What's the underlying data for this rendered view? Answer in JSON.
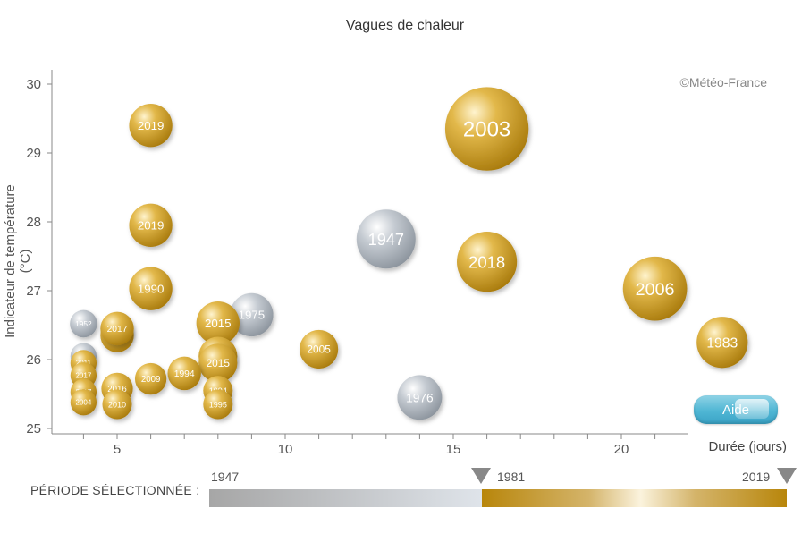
{
  "header": {
    "title": "Vagues de chaleur",
    "credit": "©Météo-France"
  },
  "colors": {
    "recent": "#c89a1e",
    "old": "#9aa3ad",
    "axis": "#888888"
  },
  "help_button": {
    "label": "Aide"
  },
  "period": {
    "label": "PÉRIODE SÉLECTIONNÉE :",
    "start": "1947",
    "split": "1981",
    "end": "2019"
  },
  "chart_data": {
    "type": "scatter",
    "title": "Vagues de chaleur",
    "xlabel": "Durée (jours)",
    "ylabel": "Indicateur de température (°C)",
    "xlim": [
      2.9,
      21.8
    ],
    "ylim": [
      24.9,
      30.2
    ],
    "xticks": [
      5,
      10,
      15,
      20
    ],
    "yticks": [
      25,
      26,
      27,
      28,
      29,
      30
    ],
    "grid": false,
    "points": [
      {
        "year": "2003",
        "x": 16,
        "y": 29.35,
        "size": 5.6,
        "period": "recent"
      },
      {
        "year": "2019",
        "x": 6,
        "y": 29.4,
        "size": 1.5,
        "period": "recent"
      },
      {
        "year": "2019",
        "x": 6,
        "y": 27.95,
        "size": 1.5,
        "period": "recent"
      },
      {
        "year": "1947",
        "x": 13,
        "y": 27.75,
        "size": 2.8,
        "period": "old"
      },
      {
        "year": "2018",
        "x": 16,
        "y": 27.42,
        "size": 2.9,
        "period": "recent"
      },
      {
        "year": "2006",
        "x": 21,
        "y": 27.03,
        "size": 3.3,
        "period": "recent"
      },
      {
        "year": "1990",
        "x": 6,
        "y": 27.03,
        "size": 1.5,
        "period": "recent"
      },
      {
        "year": "1975",
        "x": 9,
        "y": 26.65,
        "size": 1.5,
        "period": "old"
      },
      {
        "year": "2015",
        "x": 8,
        "y": 26.53,
        "size": 1.5,
        "period": "recent"
      },
      {
        "year": "1952",
        "x": 4,
        "y": 26.52,
        "size": 0.6,
        "period": "old"
      },
      {
        "year": "2017",
        "x": 5,
        "y": 26.35,
        "size": 0.9,
        "period": "recent"
      },
      {
        "year": "2017",
        "x": 5,
        "y": 26.45,
        "size": 0.9,
        "period": "recent"
      },
      {
        "year": "1983",
        "x": 23,
        "y": 26.25,
        "size": 2.1,
        "period": "recent"
      },
      {
        "year": "2005",
        "x": 11,
        "y": 26.15,
        "size": 1.2,
        "period": "recent"
      },
      {
        "year": "",
        "x": 4,
        "y": 26.05,
        "size": 0.55,
        "period": "old"
      },
      {
        "year": "2015",
        "x": 8,
        "y": 26.05,
        "size": 1.2,
        "period": "recent"
      },
      {
        "year": "2015",
        "x": 8,
        "y": 25.95,
        "size": 1.2,
        "period": "recent"
      },
      {
        "year": "2011",
        "x": 4,
        "y": 25.95,
        "size": 0.55,
        "period": "recent"
      },
      {
        "year": "1994",
        "x": 7,
        "y": 25.8,
        "size": 0.9,
        "period": "recent"
      },
      {
        "year": "2017",
        "x": 4,
        "y": 25.77,
        "size": 0.55,
        "period": "recent"
      },
      {
        "year": "2009",
        "x": 6,
        "y": 25.72,
        "size": 0.8,
        "period": "recent"
      },
      {
        "year": "2016",
        "x": 5,
        "y": 25.58,
        "size": 0.8,
        "period": "recent"
      },
      {
        "year": "2017",
        "x": 4,
        "y": 25.53,
        "size": 0.55,
        "period": "recent"
      },
      {
        "year": "1994",
        "x": 8,
        "y": 25.55,
        "size": 0.7,
        "period": "recent"
      },
      {
        "year": "1976",
        "x": 14,
        "y": 25.45,
        "size": 1.6,
        "period": "old"
      },
      {
        "year": "2004",
        "x": 4,
        "y": 25.38,
        "size": 0.55,
        "period": "recent"
      },
      {
        "year": "2010",
        "x": 5,
        "y": 25.35,
        "size": 0.7,
        "period": "recent"
      },
      {
        "year": "1995",
        "x": 8,
        "y": 25.35,
        "size": 0.7,
        "period": "recent"
      }
    ]
  }
}
